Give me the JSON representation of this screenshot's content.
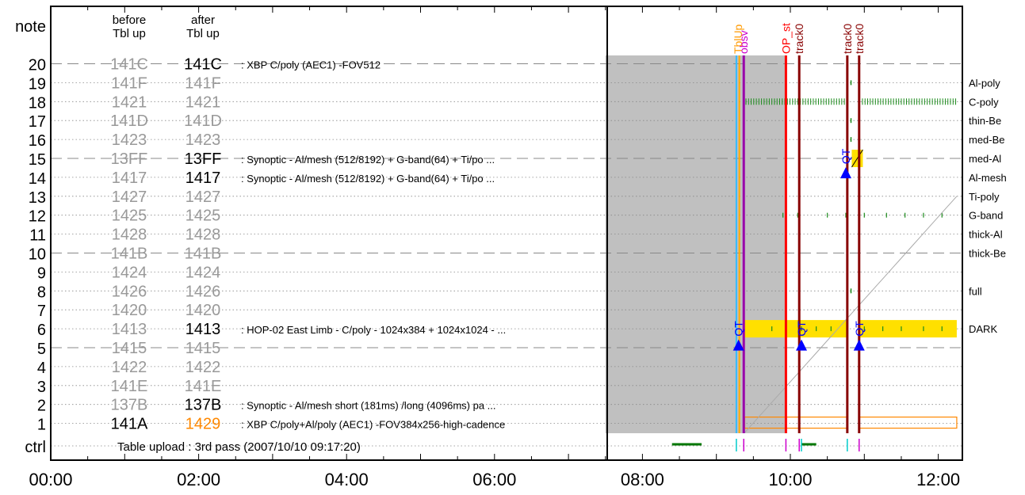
{
  "chart_data": {
    "type": "timeline",
    "x_ticks": [
      "00:00",
      "02:00",
      "04:00",
      "06:00",
      "08:00",
      "10:00",
      "12:00"
    ],
    "x_range_hours": [
      0,
      12.25
    ],
    "left_panel_end_hour": 7.5,
    "row_header": "note",
    "ctrl_label": "ctrl",
    "col_before": [
      "before",
      "Tbl up"
    ],
    "col_after": [
      "after",
      "Tbl up"
    ],
    "rows": [
      {
        "n": 20,
        "before": "141C",
        "after": "141C",
        "b_active": false,
        "a_active": true,
        "desc": "XBP C/poly (AEC1) -FOV512",
        "line": "dash"
      },
      {
        "n": 19,
        "before": "141F",
        "after": "141F",
        "b_active": false,
        "a_active": false,
        "desc": "",
        "line": "dot"
      },
      {
        "n": 18,
        "before": "1421",
        "after": "1421",
        "b_active": false,
        "a_active": false,
        "desc": "",
        "line": "dot"
      },
      {
        "n": 17,
        "before": "141D",
        "after": "141D",
        "b_active": false,
        "a_active": false,
        "desc": "",
        "line": "dot"
      },
      {
        "n": 16,
        "before": "1423",
        "after": "1423",
        "b_active": false,
        "a_active": false,
        "desc": "",
        "line": "dot"
      },
      {
        "n": 15,
        "before": "13FF",
        "after": "13FF",
        "b_active": false,
        "a_active": true,
        "desc": "Synoptic - Al/mesh (512/8192) + G-band(64) + Ti/po ...",
        "line": "dash"
      },
      {
        "n": 14,
        "before": "1417",
        "after": "1417",
        "b_active": false,
        "a_active": true,
        "desc": "Synoptic - Al/mesh (512/8192) + G-band(64) + Ti/po ...",
        "line": "dot"
      },
      {
        "n": 13,
        "before": "1427",
        "after": "1427",
        "b_active": false,
        "a_active": false,
        "desc": "",
        "line": "dot"
      },
      {
        "n": 12,
        "before": "1425",
        "after": "1425",
        "b_active": false,
        "a_active": false,
        "desc": "",
        "line": "dot"
      },
      {
        "n": 11,
        "before": "1428",
        "after": "1428",
        "b_active": false,
        "a_active": false,
        "desc": "",
        "line": "dot"
      },
      {
        "n": 10,
        "before": "141B",
        "after": "141B",
        "b_active": false,
        "a_active": false,
        "desc": "",
        "line": "dash"
      },
      {
        "n": 9,
        "before": "1424",
        "after": "1424",
        "b_active": false,
        "a_active": false,
        "desc": "",
        "line": "dot"
      },
      {
        "n": 8,
        "before": "1426",
        "after": "1426",
        "b_active": false,
        "a_active": false,
        "desc": "",
        "line": "dot"
      },
      {
        "n": 7,
        "before": "1420",
        "after": "1420",
        "b_active": false,
        "a_active": false,
        "desc": "",
        "line": "dot"
      },
      {
        "n": 6,
        "before": "1413",
        "after": "1413",
        "b_active": false,
        "a_active": true,
        "desc": "HOP-02 East Limb - C/poly - 1024x384 + 1024x1024 - ...",
        "line": "dot"
      },
      {
        "n": 5,
        "before": "1415",
        "after": "1415",
        "b_active": false,
        "a_active": false,
        "desc": "",
        "line": "dash"
      },
      {
        "n": 4,
        "before": "1422",
        "after": "1422",
        "b_active": false,
        "a_active": false,
        "desc": "",
        "line": "dot"
      },
      {
        "n": 3,
        "before": "141E",
        "after": "141E",
        "b_active": false,
        "a_active": false,
        "desc": "",
        "line": "dot"
      },
      {
        "n": 2,
        "before": "137B",
        "after": "137B",
        "b_active": false,
        "a_active": true,
        "desc": "Synoptic - Al/mesh short (181ms) /long (4096ms) pa ...",
        "line": "dot"
      },
      {
        "n": 1,
        "before": "141A",
        "after": "1429",
        "b_active": true,
        "a_active": true,
        "a_changed": true,
        "desc": "XBP C/poly+Al/poly (AEC1) -FOV384x256-high-cadence",
        "line": "dot"
      }
    ],
    "ctrl_text": "Table upload : 3rd pass (2007/10/10 09:17:20)",
    "filters": [
      {
        "row": 19,
        "label": "Al-poly"
      },
      {
        "row": 18,
        "label": "C-poly"
      },
      {
        "row": 17,
        "label": "thin-Be"
      },
      {
        "row": 16,
        "label": "med-Be"
      },
      {
        "row": 15,
        "label": "med-Al"
      },
      {
        "row": 14,
        "label": "Al-mesh"
      },
      {
        "row": 13,
        "label": "Ti-poly"
      },
      {
        "row": 12,
        "label": "G-band"
      },
      {
        "row": 11,
        "label": "thick-Al"
      },
      {
        "row": 10,
        "label": "thick-Be"
      },
      {
        "row": 8,
        "label": "full"
      },
      {
        "row": 6,
        "label": "DARK"
      }
    ],
    "gray_region_hours": [
      7.5,
      9.93
    ],
    "events": [
      {
        "label": "TblUp",
        "t": 9.29,
        "color": "#ff9900"
      },
      {
        "label": "obsv",
        "t": 9.37,
        "color": "#cc00cc"
      },
      {
        "label": "OP_st",
        "t": 9.94,
        "color": "#ff0000"
      },
      {
        "label": "track0",
        "t": 10.12,
        "color": "#880000"
      },
      {
        "label": "track0",
        "t": 10.77,
        "color": "#880000"
      },
      {
        "label": "track0",
        "t": 10.93,
        "color": "#880000"
      }
    ],
    "qt_markers": [
      {
        "t": 9.3,
        "row": 5.1
      },
      {
        "t": 10.15,
        "row": 5.1
      },
      {
        "t": 10.93,
        "row": 5.1
      },
      {
        "t": 10.75,
        "row": 14.2
      }
    ],
    "qt_label": "QT",
    "colors": {
      "dark_band": "#ffe000",
      "green_marks": "#1a8a1a",
      "active_text": "#000000",
      "inactive_text": "#999999",
      "changed_text": "#ff8800",
      "qt_blue": "#0000ff",
      "ctrl_green": "#007700"
    }
  }
}
